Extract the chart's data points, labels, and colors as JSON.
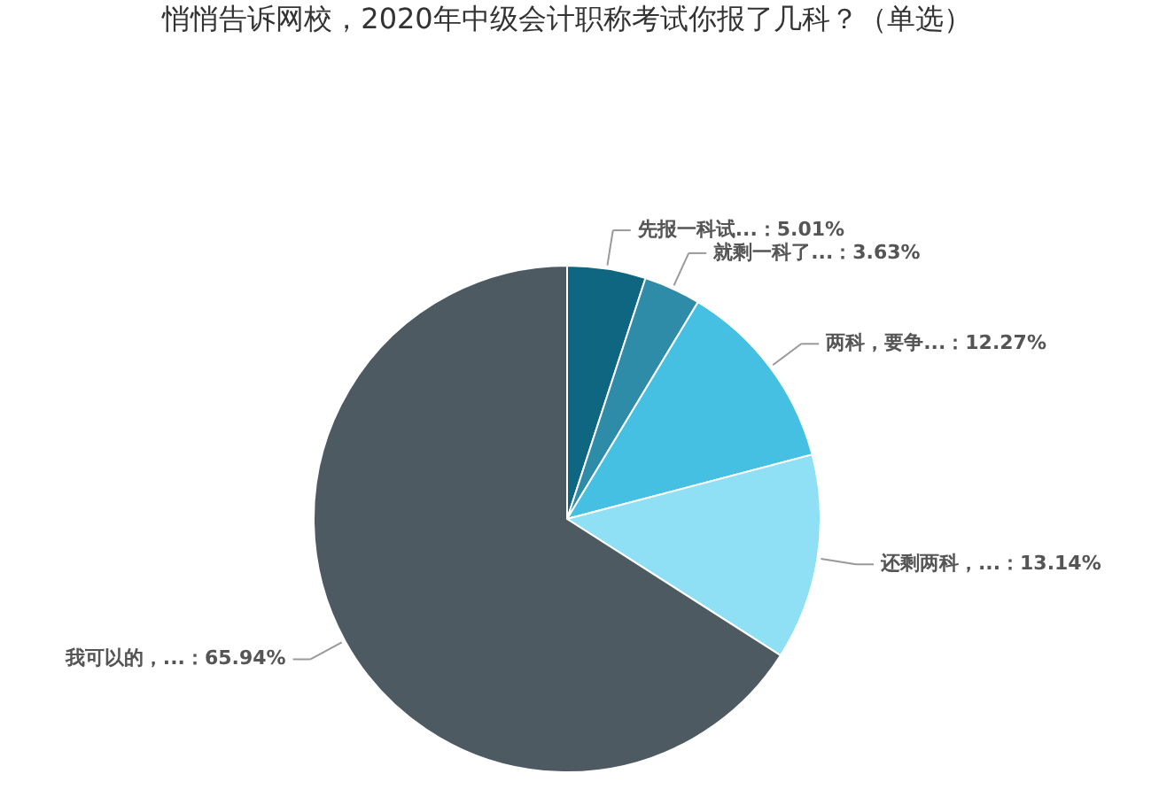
{
  "chart_data": {
    "type": "pie",
    "title": "悄悄告诉网校，2020年中级会计职称考试你报了几科？（单选）",
    "categories": [
      "先报一科试...",
      "就剩一科了...",
      "两科，要争...",
      "还剩两科，...",
      "我可以的，..."
    ],
    "values": [
      5.01,
      3.63,
      12.27,
      13.14,
      65.94
    ],
    "colors": [
      "#0e6680",
      "#2e8ca8",
      "#45c0e3",
      "#8fdff5",
      "#4d5a61"
    ],
    "value_labels": [
      "5.01%",
      "3.63%",
      "12.27%",
      "13.14%",
      "65.94%"
    ],
    "legend": false
  }
}
